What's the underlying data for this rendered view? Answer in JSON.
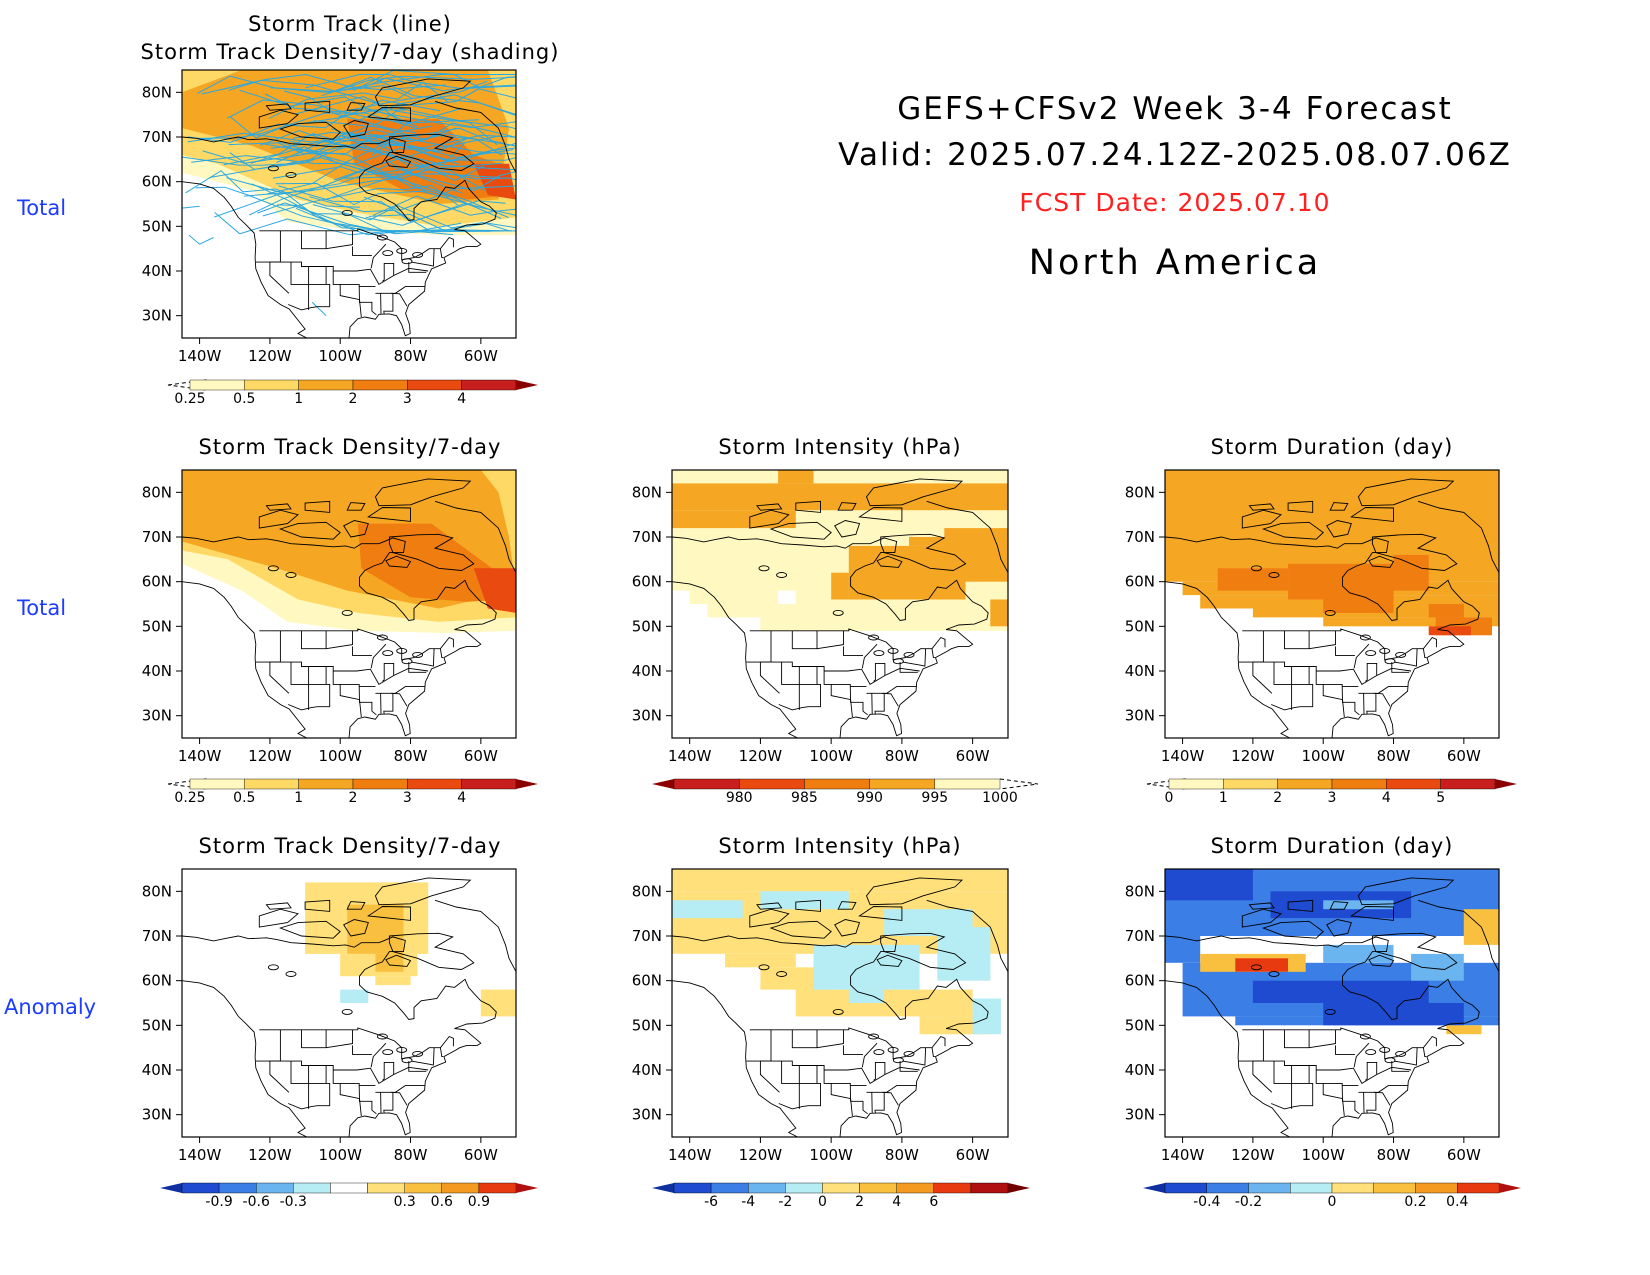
{
  "header": {
    "line1": "GEFS+CFSv2 Week 3-4 Forecast",
    "line2": "Valid: 2025.07.24.12Z-2025.08.07.06Z",
    "fcst_date": "FCST Date: 2025.07.10",
    "region": "North America"
  },
  "row_labels": [
    "Total",
    "Total",
    "Anomaly"
  ],
  "axes": {
    "lat_ticks": [
      "80N",
      "70N",
      "60N",
      "50N",
      "40N",
      "30N"
    ],
    "lon_ticks": [
      "140W",
      "120W",
      "100W",
      "80W",
      "60W"
    ]
  },
  "colors": {
    "row_label": "#1c3cff",
    "fcst_date": "#ff2020",
    "track_line": "#2aa8e0",
    "seq_warm": [
      "#fff8c0",
      "#ffd966",
      "#f5a623",
      "#f07d10",
      "#e84a10",
      "#c81e1e"
    ],
    "diverging": [
      "#1e4bd0",
      "#3a7ee6",
      "#6ab4f0",
      "#b6ecf4",
      "#ffffff",
      "#ffe07a",
      "#f9c040",
      "#f59a20",
      "#e83a10"
    ]
  },
  "chart_data": [
    {
      "type": "heatmap",
      "id": "track_total",
      "title_line1": "Storm Track (line)",
      "title_line2": "Storm Track Density/7-day (shading)",
      "colorbar_ticks": [
        "0.25",
        "0.5",
        "1",
        "2",
        "3",
        "4"
      ],
      "colorbar_colors": [
        "#fff8c0",
        "#ffd966",
        "#f5a623",
        "#f07d10",
        "#e84a10",
        "#c81e1e"
      ],
      "note": ""
    },
    {
      "type": "heatmap",
      "id": "density_total",
      "title": "Storm Track Density/7-day",
      "colorbar_ticks": [
        "0.25",
        "0.5",
        "1",
        "2",
        "3",
        "4"
      ],
      "colorbar_colors": [
        "#fff8c0",
        "#ffd966",
        "#f5a623",
        "#f07d10",
        "#e84a10",
        "#c81e1e"
      ]
    },
    {
      "type": "heatmap",
      "id": "intensity_total",
      "title": "Storm Intensity (hPa)",
      "colorbar_ticks": [
        "980",
        "985",
        "990",
        "995",
        "1000"
      ],
      "colorbar_colors": [
        "#c81e1e",
        "#e84a10",
        "#f07d10",
        "#f5a623",
        "#fff8c0"
      ]
    },
    {
      "type": "heatmap",
      "id": "duration_total",
      "title": "Storm Duration (day)",
      "colorbar_ticks": [
        "0",
        "1",
        "2",
        "3",
        "4",
        "5"
      ],
      "colorbar_colors": [
        "#fff8c0",
        "#ffd966",
        "#f5a623",
        "#f07d10",
        "#e84a10",
        "#c81e1e"
      ]
    },
    {
      "type": "heatmap",
      "id": "density_anom",
      "title": "Storm Track Density/7-day",
      "colorbar_ticks": [
        "-0.9",
        "-0.6",
        "-0.3",
        "0.3",
        "0.6",
        "0.9"
      ],
      "colorbar_colors": [
        "#1e4bd0",
        "#3a7ee6",
        "#6ab4f0",
        "#b6ecf4",
        "#ffffff",
        "#ffe07a",
        "#f9c040",
        "#f59a20",
        "#e83a10"
      ]
    },
    {
      "type": "heatmap",
      "id": "intensity_anom",
      "title": "Storm Intensity (hPa)",
      "colorbar_ticks": [
        "-6",
        "-4",
        "-2",
        "0",
        "2",
        "4",
        "6"
      ],
      "colorbar_colors": [
        "#1e4bd0",
        "#3a7ee6",
        "#6ab4f0",
        "#b6ecf4",
        "#ffe07a",
        "#f9c040",
        "#f59a20",
        "#e83a10",
        "#b01010"
      ]
    },
    {
      "type": "heatmap",
      "id": "duration_anom",
      "title": "Storm Duration (day)",
      "colorbar_ticks": [
        "-0.4",
        "-0.2",
        "0",
        "0.2",
        "0.4"
      ],
      "colorbar_colors": [
        "#1e4bd0",
        "#3a7ee6",
        "#6ab4f0",
        "#b6ecf4",
        "#ffe07a",
        "#f9c040",
        "#f59a20",
        "#e83a10"
      ]
    }
  ]
}
